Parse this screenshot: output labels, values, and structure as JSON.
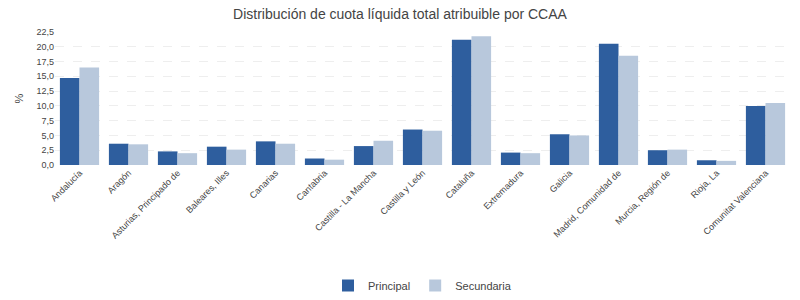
{
  "chart_data": {
    "type": "bar",
    "title": "Distribución de cuota líquida total atribuible por CCAA",
    "ylabel": "%",
    "categories": [
      "Andalucía",
      "Aragón",
      "Asturias, Principado de",
      "Baleares, Illes",
      "Canarias",
      "Cantabria",
      "Castilla - La Mancha",
      "Castilla y León",
      "Cataluña",
      "Extremadura",
      "Galicia",
      "Madrid, Comunidad de",
      "Murcia, Región de",
      "Rioja, La",
      "Comunitat Valenciana"
    ],
    "series": [
      {
        "name": "Principal",
        "color": "#2E5E9E",
        "values": [
          14.7,
          3.6,
          2.3,
          3.1,
          4.0,
          1.1,
          3.2,
          6.0,
          21.2,
          2.1,
          5.2,
          20.5,
          2.5,
          0.8,
          10.0
        ]
      },
      {
        "name": "Secundaria",
        "color": "#B8C8DC",
        "values": [
          16.5,
          3.5,
          2.0,
          2.6,
          3.6,
          0.9,
          4.1,
          5.8,
          21.8,
          2.0,
          5.0,
          18.5,
          2.6,
          0.7,
          10.5
        ]
      }
    ],
    "ylim": [
      0,
      22.5
    ],
    "yticks": [
      {
        "value": 0.0,
        "label": "0,0"
      },
      {
        "value": 2.5,
        "label": "2,5"
      },
      {
        "value": 5.0,
        "label": "5,0"
      },
      {
        "value": 7.5,
        "label": "7,5"
      },
      {
        "value": 10.0,
        "label": "10,0"
      },
      {
        "value": 12.5,
        "label": "12,5"
      },
      {
        "value": 15.0,
        "label": "15,0"
      },
      {
        "value": 17.5,
        "label": "17,5"
      },
      {
        "value": 20.0,
        "label": "20,0"
      },
      {
        "value": 22.5,
        "label": "22,5"
      }
    ],
    "grid": true,
    "legend": "bottom"
  }
}
